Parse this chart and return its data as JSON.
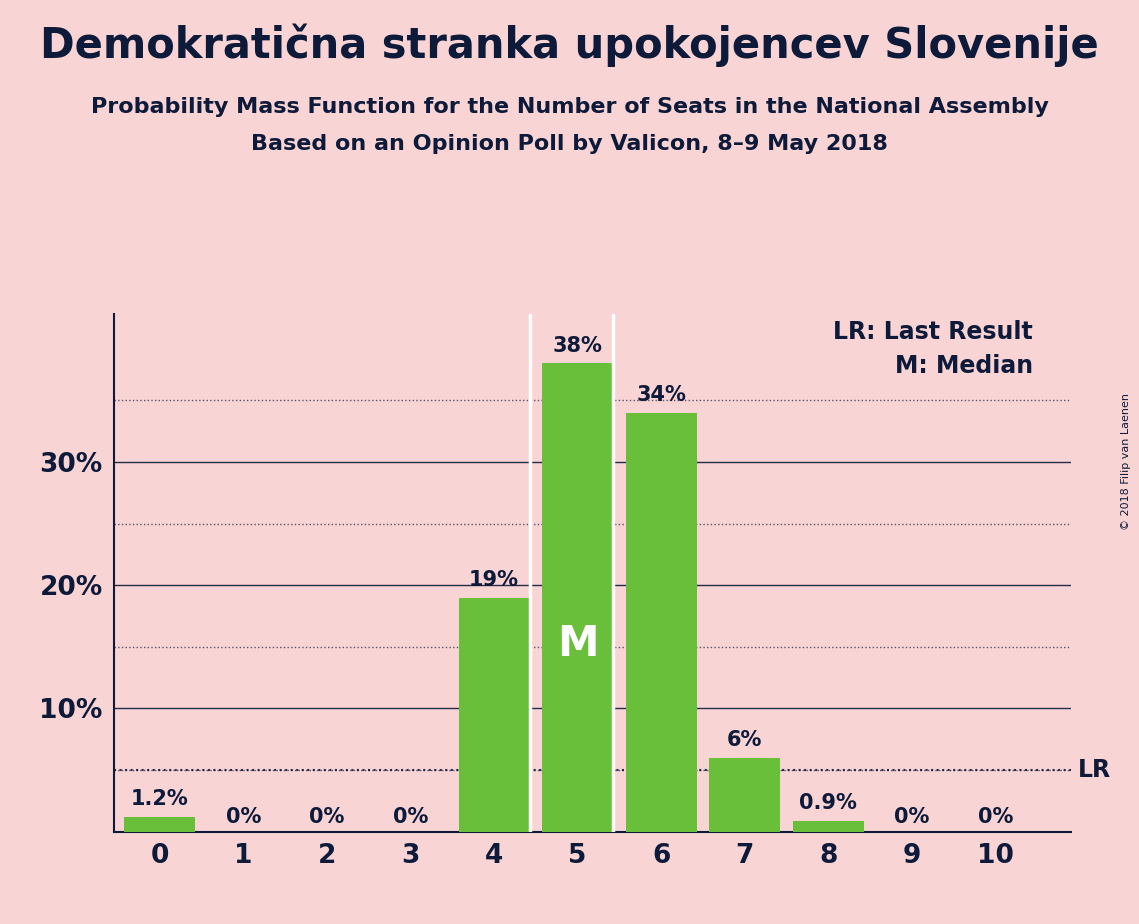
{
  "title": "Demokratična stranka upokojencev Slovenije",
  "subtitle1": "Probability Mass Function for the Number of Seats in the National Assembly",
  "subtitle2": "Based on an Opinion Poll by Valicon, 8–9 May 2018",
  "copyright": "© 2018 Filip van Laenen",
  "categories": [
    0,
    1,
    2,
    3,
    4,
    5,
    6,
    7,
    8,
    9,
    10
  ],
  "values": [
    1.2,
    0.0,
    0.0,
    0.0,
    19.0,
    38.0,
    34.0,
    6.0,
    0.9,
    0.0,
    0.0
  ],
  "labels": [
    "1.2%",
    "0%",
    "0%",
    "0%",
    "19%",
    "38%",
    "34%",
    "6%",
    "0.9%",
    "0%",
    "0%"
  ],
  "bar_color": "#6abf3a",
  "background_color": "#f9d4d4",
  "text_color": "#0d1a3a",
  "grid_color": "#0d1a3a",
  "median_bar": 5,
  "median_label": "M",
  "lr_value": 5.0,
  "lr_label": "LR",
  "lr_legend": "LR: Last Result",
  "m_legend": "M: Median",
  "ylim": [
    0,
    42
  ],
  "yticks": [
    10,
    20,
    30
  ],
  "ytick_labels": [
    "10%",
    "20%",
    "30%"
  ],
  "minor_yticks": [
    5,
    15,
    25,
    35
  ],
  "title_fontsize": 30,
  "subtitle_fontsize": 16,
  "label_fontsize": 15,
  "tick_fontsize": 19,
  "legend_fontsize": 17,
  "median_fontsize": 30
}
